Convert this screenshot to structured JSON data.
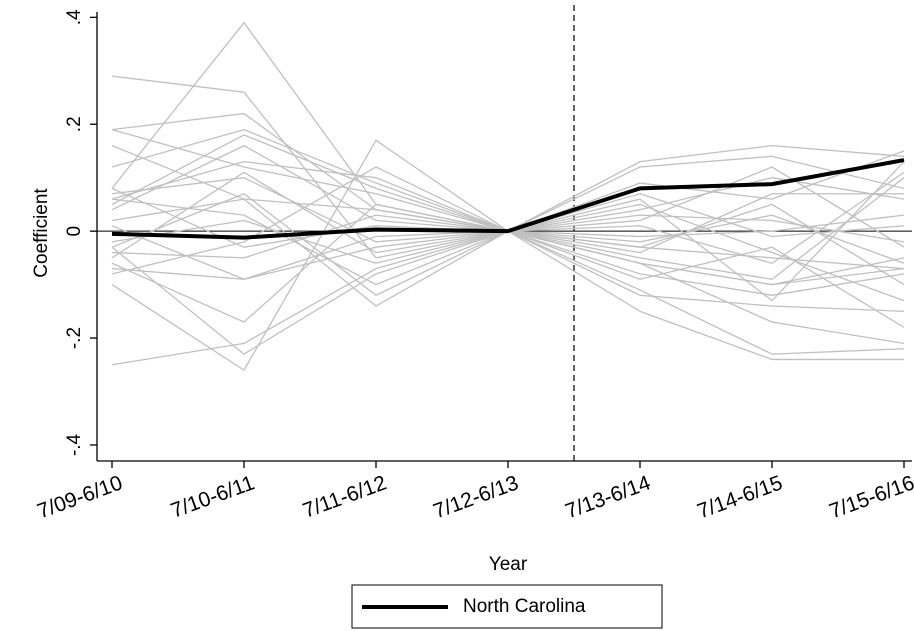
{
  "chart_data": {
    "type": "line",
    "x_label": "Year",
    "y_label": "Coefficient",
    "categories": [
      "7/09-6/10",
      "7/10-6/11",
      "7/11-6/12",
      "7/12-6/13",
      "7/13-6/14",
      "7/14-6/15",
      "7/15-6/16"
    ],
    "ylim": [
      -0.43,
      0.41
    ],
    "yticks": [
      {
        "value": 0.4,
        "label": ".4"
      },
      {
        "value": 0.2,
        "label": ".2"
      },
      0,
      {
        "value": -0.2,
        "label": "-.2"
      },
      {
        "value": -0.4,
        "label": "-.4"
      }
    ],
    "hline": 0,
    "vline": 3.5,
    "legend": "bottom",
    "series": [
      {
        "color": "#c0c0c0",
        "values": [
          0.29,
          0.26,
          -0.05,
          0,
          -0.06,
          -0.1,
          -0.07
        ]
      },
      {
        "color": "#c0c0c0",
        "values": [
          0.19,
          0.22,
          0.04,
          0,
          0.13,
          0.16,
          0.14
        ]
      },
      {
        "color": "#c0c0c0",
        "values": [
          -0.25,
          -0.21,
          -0.07,
          0,
          -0.15,
          -0.24,
          -0.24
        ]
      },
      {
        "color": "#c0c0c0",
        "values": [
          0.08,
          0.39,
          0.05,
          0,
          0.12,
          0.14,
          0.08
        ]
      },
      {
        "color": "#c0c0c0",
        "values": [
          -0.1,
          -0.26,
          0.17,
          0,
          -0.06,
          -0.17,
          -0.21
        ]
      },
      {
        "color": "#c0c0c0",
        "values": [
          0.16,
          0.06,
          -0.14,
          0,
          0.09,
          0.06,
          0.15
        ]
      },
      {
        "color": "#c0c0c0",
        "values": [
          0.06,
          0.13,
          0.1,
          0,
          -0.11,
          -0.23,
          -0.22
        ]
      },
      {
        "color": "#c0c0c0",
        "values": [
          -0.03,
          -0.23,
          -0.08,
          0,
          0.02,
          0.12,
          -0.03
        ]
      },
      {
        "color": "#c0c0c0",
        "values": [
          0.07,
          0.1,
          -0.02,
          0,
          -0.05,
          -0.09,
          0.1
        ]
      },
      {
        "color": "#c0c0c0",
        "values": [
          -0.06,
          -0.17,
          0.05,
          0,
          -0.03,
          -0.05,
          -0.07
        ]
      },
      {
        "color": "#c0c0c0",
        "values": [
          0.01,
          -0.09,
          -0.03,
          0,
          0.04,
          0.1,
          0.06
        ]
      },
      {
        "color": "#c0c0c0",
        "values": [
          0.05,
          0.18,
          0.08,
          0,
          -0.09,
          -0.03,
          -0.18
        ]
      },
      {
        "color": "#c0c0c0",
        "values": [
          -0.08,
          -0.02,
          0.12,
          0,
          0.06,
          -0.13,
          0.13
        ]
      },
      {
        "color": "#c0c0c0",
        "values": [
          0.04,
          0.16,
          0.02,
          0,
          -0.02,
          0.03,
          -0.06
        ]
      },
      {
        "color": "#c0c0c0",
        "values": [
          -0.02,
          0.02,
          -0.06,
          0,
          -0.08,
          -0.12,
          -0.08
        ]
      },
      {
        "color": "#c0c0c0",
        "values": [
          0.19,
          0.12,
          0.07,
          0,
          -0.04,
          0.07,
          0.07
        ]
      },
      {
        "color": "#c0c0c0",
        "values": [
          -0.04,
          -0.05,
          0.03,
          0,
          -0.12,
          -0.14,
          -0.15
        ]
      },
      {
        "color": "#c0c0c0",
        "values": [
          0.06,
          0.03,
          -0.1,
          0,
          0.07,
          -0.01,
          0.01
        ]
      },
      {
        "color": "#c0c0c0",
        "values": [
          -0.07,
          -0.09,
          -0.01,
          0,
          0.01,
          -0.06,
          0.11
        ]
      },
      {
        "color": "#c0c0c0",
        "values": [
          0.02,
          0.06,
          0.04,
          0,
          -0.03,
          0.05,
          -0.1
        ]
      },
      {
        "color": "#c0c0c0",
        "values": [
          0.08,
          -0.03,
          0.01,
          0,
          0.03,
          0.02,
          -0.02
        ]
      },
      {
        "color": "#c0c0c0",
        "values": [
          -0.05,
          0.11,
          -0.04,
          0,
          -0.06,
          -0.1,
          -0.05
        ]
      },
      {
        "color": "#c0c0c0",
        "values": [
          0.12,
          0.19,
          0.09,
          0,
          -0.01,
          0.0,
          0.03
        ]
      },
      {
        "color": "#c0c0c0",
        "values": [
          -0.03,
          0.07,
          -0.12,
          0,
          0.05,
          -0.04,
          -0.13
        ]
      },
      {
        "name": "North Carolina",
        "color": "#000000",
        "line_width": 4,
        "values": [
          -0.005,
          -0.012,
          0.003,
          0,
          0.08,
          0.088,
          0.133
        ]
      }
    ]
  }
}
